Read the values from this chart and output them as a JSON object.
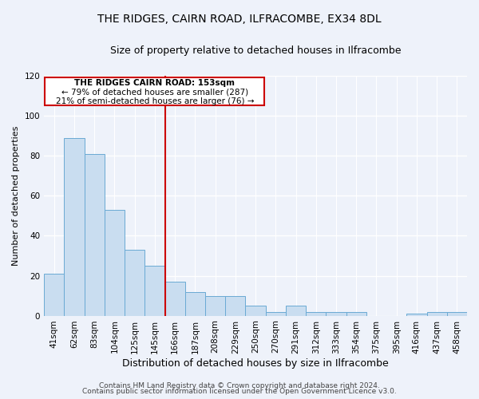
{
  "title": "THE RIDGES, CAIRN ROAD, ILFRACOMBE, EX34 8DL",
  "subtitle": "Size of property relative to detached houses in Ilfracombe",
  "xlabel": "Distribution of detached houses by size in Ilfracombe",
  "ylabel": "Number of detached properties",
  "categories": [
    "41sqm",
    "62sqm",
    "83sqm",
    "104sqm",
    "125sqm",
    "145sqm",
    "166sqm",
    "187sqm",
    "208sqm",
    "229sqm",
    "250sqm",
    "270sqm",
    "291sqm",
    "312sqm",
    "333sqm",
    "354sqm",
    "375sqm",
    "395sqm",
    "416sqm",
    "437sqm",
    "458sqm"
  ],
  "values": [
    21,
    89,
    81,
    53,
    33,
    25,
    17,
    12,
    10,
    10,
    5,
    2,
    5,
    2,
    2,
    2,
    0,
    0,
    1,
    2,
    2
  ],
  "bar_color": "#c9ddf0",
  "bar_edge_color": "#6aaad4",
  "ylim": [
    0,
    120
  ],
  "yticks": [
    0,
    20,
    40,
    60,
    80,
    100,
    120
  ],
  "vline_color": "#cc0000",
  "annotation_title": "THE RIDGES CAIRN ROAD: 153sqm",
  "annotation_line1": "← 79% of detached houses are smaller (287)",
  "annotation_line2": "21% of semi-detached houses are larger (76) →",
  "annotation_box_color": "#cc0000",
  "footer_line1": "Contains HM Land Registry data © Crown copyright and database right 2024.",
  "footer_line2": "Contains public sector information licensed under the Open Government Licence v3.0.",
  "bg_color": "#eef2fa",
  "grid_color": "#ffffff",
  "title_fontsize": 10,
  "subtitle_fontsize": 9,
  "xlabel_fontsize": 9,
  "ylabel_fontsize": 8,
  "tick_fontsize": 7.5,
  "footer_fontsize": 6.5
}
